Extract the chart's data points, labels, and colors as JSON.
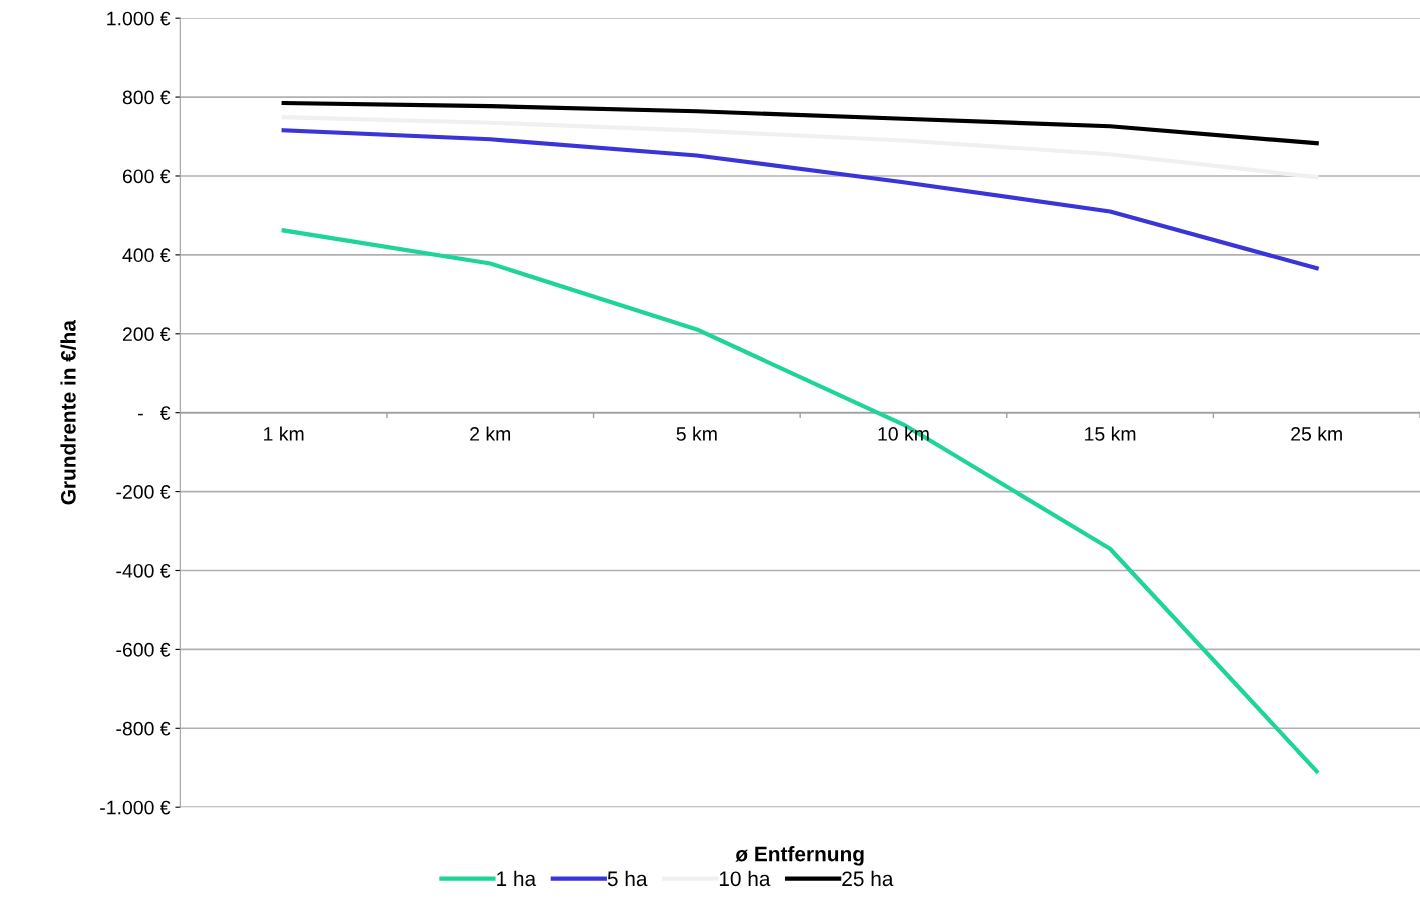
{
  "chart_data": {
    "type": "line",
    "xlabel": "ø Entfernung",
    "ylabel": "Grundrente in €/ha",
    "categories": [
      "1 km",
      "2 km",
      "5 km",
      "10 km",
      "15 km",
      "25 km"
    ],
    "series": [
      {
        "name": "1 ha",
        "color": "#1fd49a",
        "values": [
          462,
          378,
          211,
          -30,
          -345,
          -909
        ]
      },
      {
        "name": "5 ha",
        "color": "#3a35d8",
        "values": [
          716,
          693,
          652,
          584,
          510,
          366
        ]
      },
      {
        "name": "10 ha",
        "color": "#f0f0f0",
        "values": [
          749,
          735,
          715,
          690,
          655,
          597
        ]
      },
      {
        "name": "25 ha",
        "color": "#000000",
        "values": [
          785,
          777,
          764,
          745,
          726,
          683
        ]
      }
    ],
    "ylim": [
      -1000,
      1000
    ],
    "yticks": [
      {
        "value": -1000,
        "label": "-1.000 €"
      },
      {
        "value": -800,
        "label": "-800 €"
      },
      {
        "value": -600,
        "label": "-600 €"
      },
      {
        "value": -400,
        "label": "-400 €"
      },
      {
        "value": -200,
        "label": "-200 €"
      },
      {
        "value": 0,
        "label": "-   €"
      },
      {
        "value": 200,
        "label": "200 €"
      },
      {
        "value": 400,
        "label": "400 €"
      },
      {
        "value": 600,
        "label": "600 €"
      },
      {
        "value": 800,
        "label": "800 €"
      },
      {
        "value": 1000,
        "label": "1.000 €"
      }
    ],
    "grid": "y",
    "legend": "bottom",
    "marker": "none",
    "line_style": "solid"
  }
}
